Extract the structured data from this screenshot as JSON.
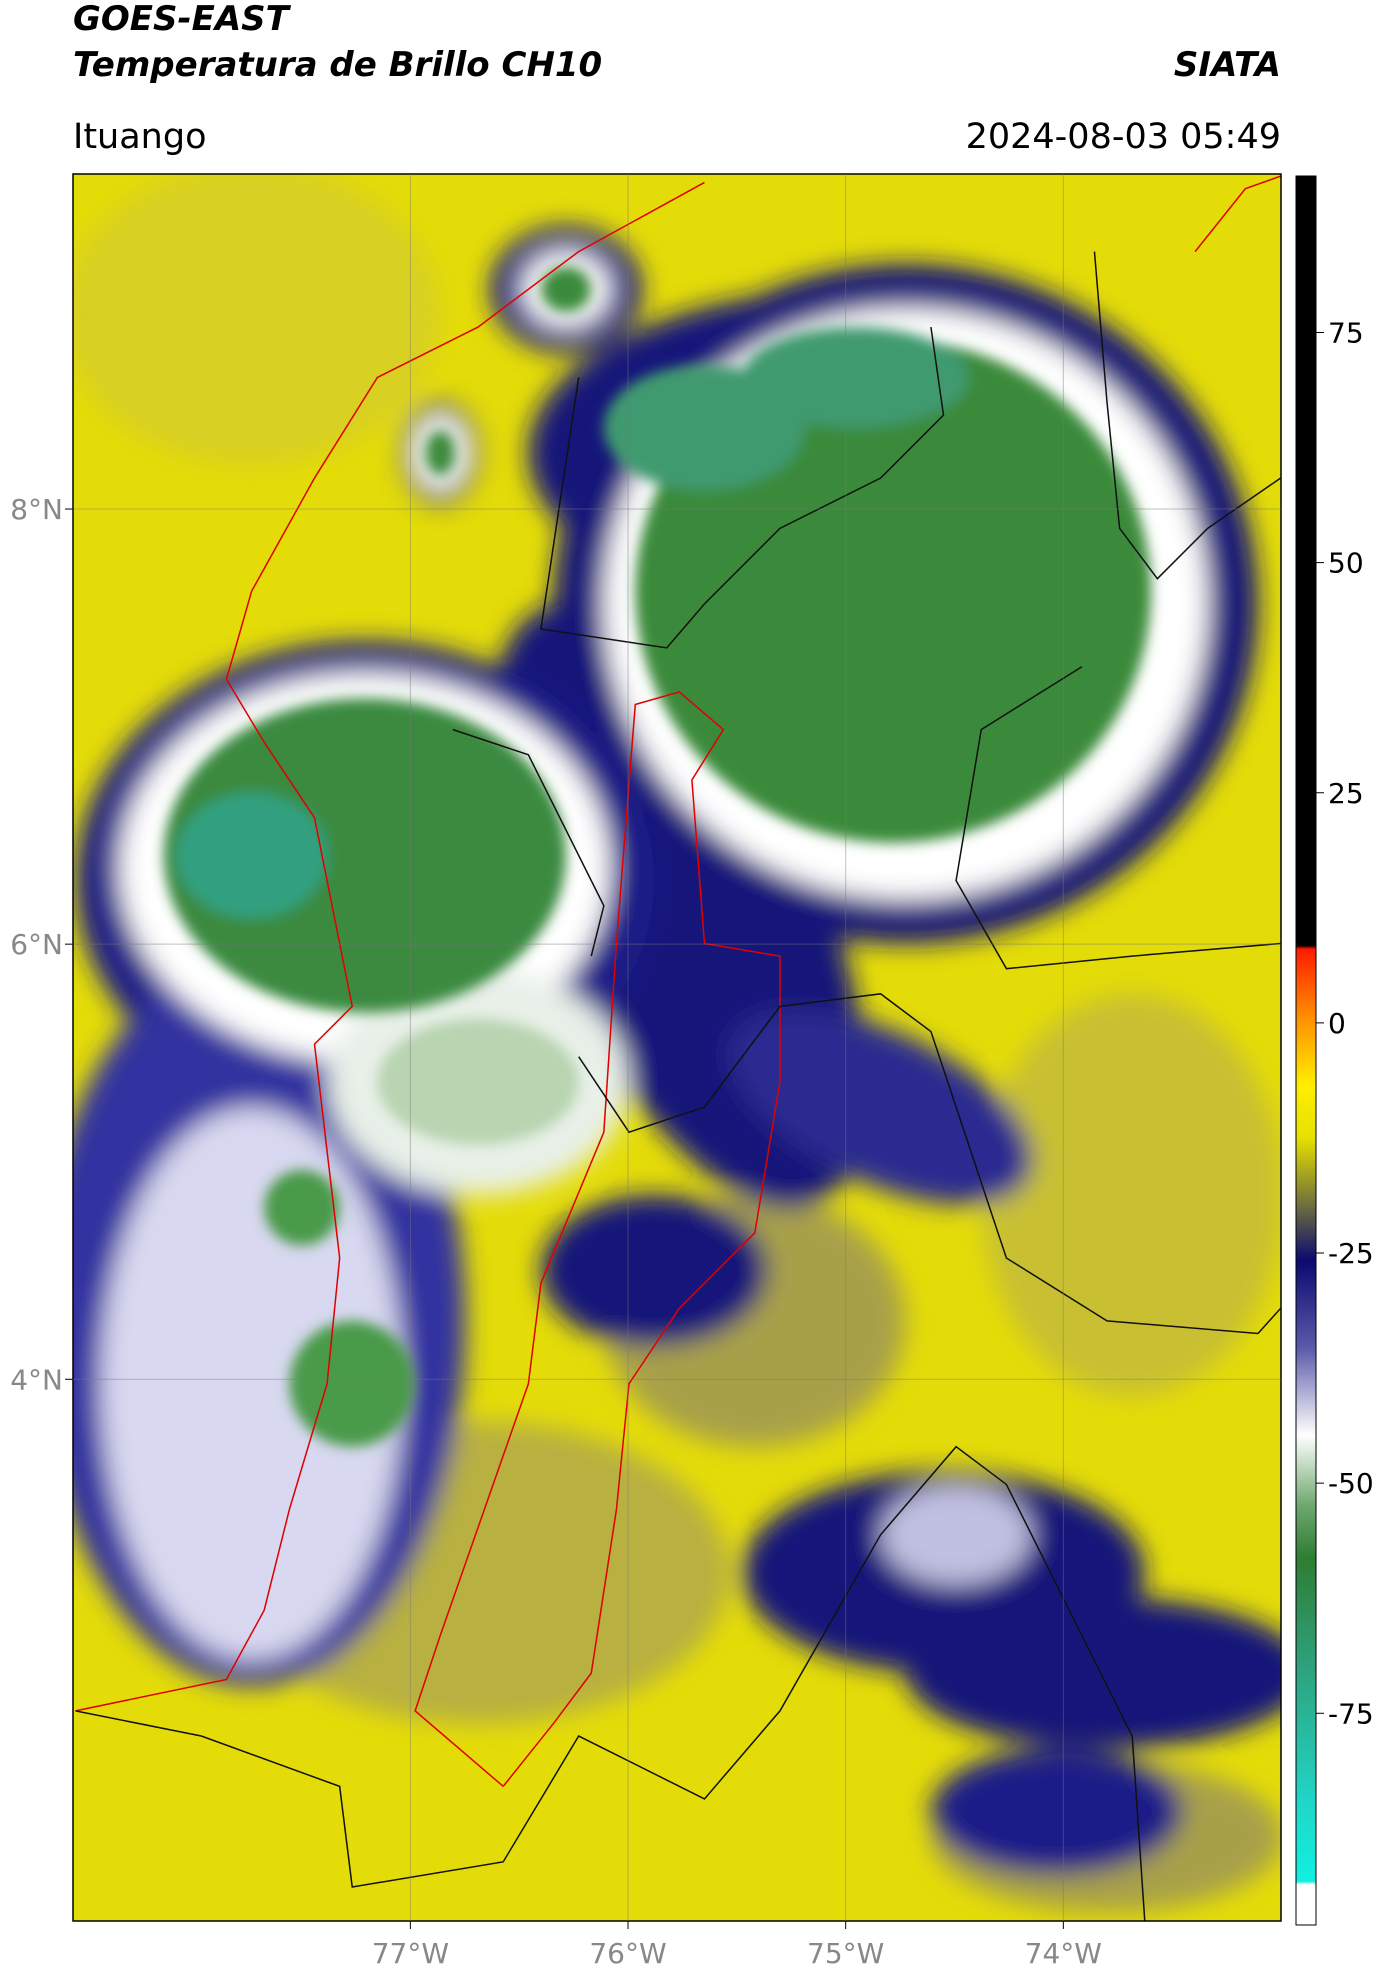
{
  "header": {
    "title": "GOES-EAST",
    "subtitle": "Temperatura de Brillo CH10",
    "organization": "SIATA",
    "location": "Ituango",
    "timestamp": "2024-08-03 05:49"
  },
  "map": {
    "xlim": [
      -78.55,
      -73.0
    ],
    "ylim": [
      1.51,
      9.54
    ],
    "xticks": [
      {
        "value": -77,
        "label": "77°W"
      },
      {
        "value": -76,
        "label": "76°W"
      },
      {
        "value": -75,
        "label": "75°W"
      },
      {
        "value": -74,
        "label": "74°W"
      }
    ],
    "yticks": [
      {
        "value": 8,
        "label": "8°N"
      },
      {
        "value": 6,
        "label": "6°N"
      },
      {
        "value": 4,
        "label": "4°N"
      }
    ],
    "grid": true
  },
  "colorbar": {
    "lim": [
      -98,
      92
    ],
    "ticks": [
      75,
      50,
      25,
      0,
      -25,
      -50,
      -75
    ]
  }
}
